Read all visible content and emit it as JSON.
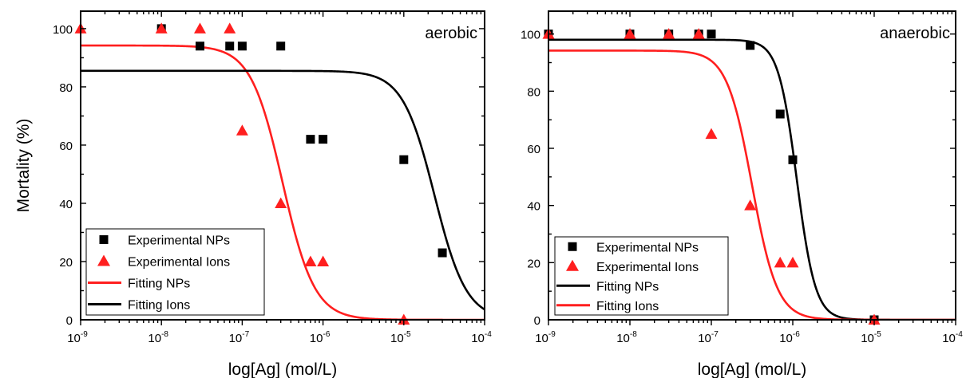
{
  "chart_data": [
    {
      "type": "scatter",
      "title": "",
      "annotation": "aerobic",
      "xlabel": "log[Ag] (mol/L)",
      "ylabel": "Mortality (%)",
      "xscale": "log",
      "xlim": [
        1e-09,
        0.0001
      ],
      "ylim": [
        0,
        106
      ],
      "x_ticks": [
        {
          "base": "10",
          "exp": "-9"
        },
        {
          "base": "10",
          "exp": "-8"
        },
        {
          "base": "10",
          "exp": "-7"
        },
        {
          "base": "10",
          "exp": "-6"
        },
        {
          "base": "10",
          "exp": "-5"
        },
        {
          "base": "10",
          "exp": "-4"
        }
      ],
      "y_ticks": [
        "0",
        "20",
        "40",
        "60",
        "80",
        "100"
      ],
      "legend_position": "bottom-left",
      "series": [
        {
          "name": "Experimental NPs",
          "kind": "marker",
          "marker": "square",
          "color": "#000000",
          "points": [
            [
              1e-08,
              100
            ],
            [
              3e-08,
              94
            ],
            [
              7e-08,
              94
            ],
            [
              1e-07,
              94
            ],
            [
              3e-07,
              94
            ],
            [
              7e-07,
              62
            ],
            [
              1e-06,
              62
            ],
            [
              1e-05,
              55
            ],
            [
              3e-05,
              23
            ]
          ]
        },
        {
          "name": "Experimental Ions",
          "kind": "marker",
          "marker": "triangle",
          "color": "#ff1f1f",
          "points": [
            [
              1e-09,
              100
            ],
            [
              1e-08,
              100
            ],
            [
              3e-08,
              100
            ],
            [
              7e-08,
              100
            ],
            [
              1e-07,
              65
            ],
            [
              3e-07,
              40
            ],
            [
              7e-07,
              20
            ],
            [
              1e-06,
              20
            ],
            [
              1e-05,
              0
            ]
          ]
        },
        {
          "name": "Fitting NPs",
          "kind": "line",
          "color": "#ff1f1f",
          "curve": {
            "top": 94.2,
            "bottom": 0,
            "logEC50": -6.5,
            "hill": 2.2
          }
        },
        {
          "name": "Fitting Ions",
          "kind": "line",
          "color": "#000000",
          "curve": {
            "top": 85.5,
            "bottom": 0,
            "logEC50": -4.62,
            "hill": 2.2
          }
        }
      ],
      "legend_order": [
        "Experimental NPs",
        "Experimental Ions",
        "Fitting NPs",
        "Fitting Ions"
      ]
    },
    {
      "type": "scatter",
      "title": "",
      "annotation": "anaerobic",
      "xlabel": "log[Ag] (mol/L)",
      "ylabel": "",
      "xscale": "log",
      "xlim": [
        1e-09,
        0.0001
      ],
      "ylim": [
        0,
        108
      ],
      "x_ticks": [
        {
          "base": "10",
          "exp": "-9"
        },
        {
          "base": "10",
          "exp": "-8"
        },
        {
          "base": "10",
          "exp": "-7"
        },
        {
          "base": "10",
          "exp": "-6"
        },
        {
          "base": "10",
          "exp": "-5"
        },
        {
          "base": "10",
          "exp": "-4"
        }
      ],
      "y_ticks": [
        "0",
        "20",
        "40",
        "60",
        "80",
        "100"
      ],
      "legend_position": "bottom-left",
      "series": [
        {
          "name": "Experimental NPs",
          "kind": "marker",
          "marker": "square",
          "color": "#000000",
          "points": [
            [
              1e-09,
              100
            ],
            [
              1e-08,
              100
            ],
            [
              3e-08,
              100
            ],
            [
              7e-08,
              100
            ],
            [
              1e-07,
              100
            ],
            [
              3e-07,
              96
            ],
            [
              7e-07,
              72
            ],
            [
              1e-06,
              56
            ],
            [
              1e-05,
              0
            ]
          ]
        },
        {
          "name": "Experimental Ions",
          "kind": "marker",
          "marker": "triangle",
          "color": "#ff1f1f",
          "points": [
            [
              1e-09,
              100
            ],
            [
              1e-08,
              100
            ],
            [
              3e-08,
              100
            ],
            [
              7e-08,
              100
            ],
            [
              1e-07,
              65
            ],
            [
              3e-07,
              40
            ],
            [
              7e-07,
              20
            ],
            [
              1e-06,
              20
            ],
            [
              1e-05,
              0
            ]
          ]
        },
        {
          "name": "Fitting NPs",
          "kind": "line",
          "color": "#000000",
          "curve": {
            "top": 98,
            "bottom": 0,
            "logEC50": -5.95,
            "hill": 3.8
          }
        },
        {
          "name": "Fitting Ions",
          "kind": "line",
          "color": "#ff1f1f",
          "curve": {
            "top": 94.2,
            "bottom": 0,
            "logEC50": -6.5,
            "hill": 2.8
          }
        }
      ],
      "legend_order": [
        "Experimental NPs",
        "Experimental Ions",
        "Fitting NPs",
        "Fitting Ions"
      ]
    }
  ]
}
